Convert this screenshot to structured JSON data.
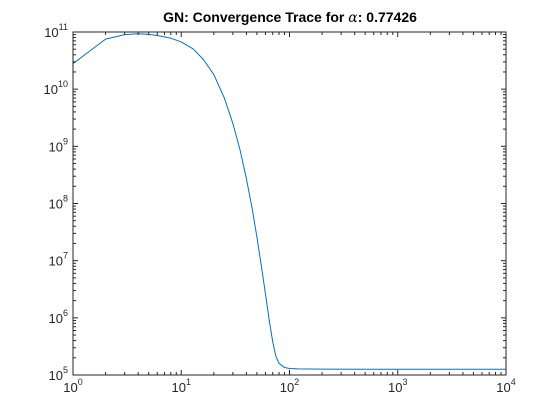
{
  "chart_data": {
    "type": "line",
    "title_prefix": "GN: Convergence Trace for ",
    "title_symbol": "α",
    "title_suffix": ": 0.77426",
    "xlabel": "",
    "ylabel": "",
    "xscale": "log",
    "yscale": "log",
    "xlim": [
      1,
      10000
    ],
    "ylim": [
      100000,
      100000000000
    ],
    "grid": false,
    "xticks": [
      {
        "value": 1,
        "base": "10",
        "exp": "0"
      },
      {
        "value": 10,
        "base": "10",
        "exp": "1"
      },
      {
        "value": 100,
        "base": "10",
        "exp": "2"
      },
      {
        "value": 1000,
        "base": "10",
        "exp": "3"
      },
      {
        "value": 10000,
        "base": "10",
        "exp": "4"
      }
    ],
    "yticks": [
      {
        "value": 100000,
        "base": "10",
        "exp": "5"
      },
      {
        "value": 1000000,
        "base": "10",
        "exp": "6"
      },
      {
        "value": 10000000,
        "base": "10",
        "exp": "7"
      },
      {
        "value": 100000000,
        "base": "10",
        "exp": "8"
      },
      {
        "value": 1000000000,
        "base": "10",
        "exp": "9"
      },
      {
        "value": 10000000000,
        "base": "10",
        "exp": "10"
      },
      {
        "value": 100000000000,
        "base": "10",
        "exp": "11"
      }
    ],
    "series": [
      {
        "color": "#0072bd",
        "x": [
          1,
          2,
          3,
          4,
          5,
          6,
          8,
          10,
          13,
          16,
          20,
          25,
          30,
          35,
          40,
          45,
          50,
          55,
          60,
          65,
          70,
          75,
          80,
          90,
          100,
          120,
          150,
          200,
          500,
          1000,
          5000,
          10000
        ],
        "y": [
          28000000000,
          75000000000,
          90000000000,
          93000000000,
          91000000000,
          87000000000,
          78000000000,
          67000000000,
          50000000000,
          33000000000,
          18000000000,
          7000000000,
          2500000000,
          850000000,
          270000000,
          85000000,
          26000000,
          8000000,
          2600000,
          900000,
          380000,
          210000,
          160000,
          135000,
          130000,
          128000,
          127500,
          127000,
          126000,
          126000,
          126000,
          126000
        ]
      }
    ]
  }
}
